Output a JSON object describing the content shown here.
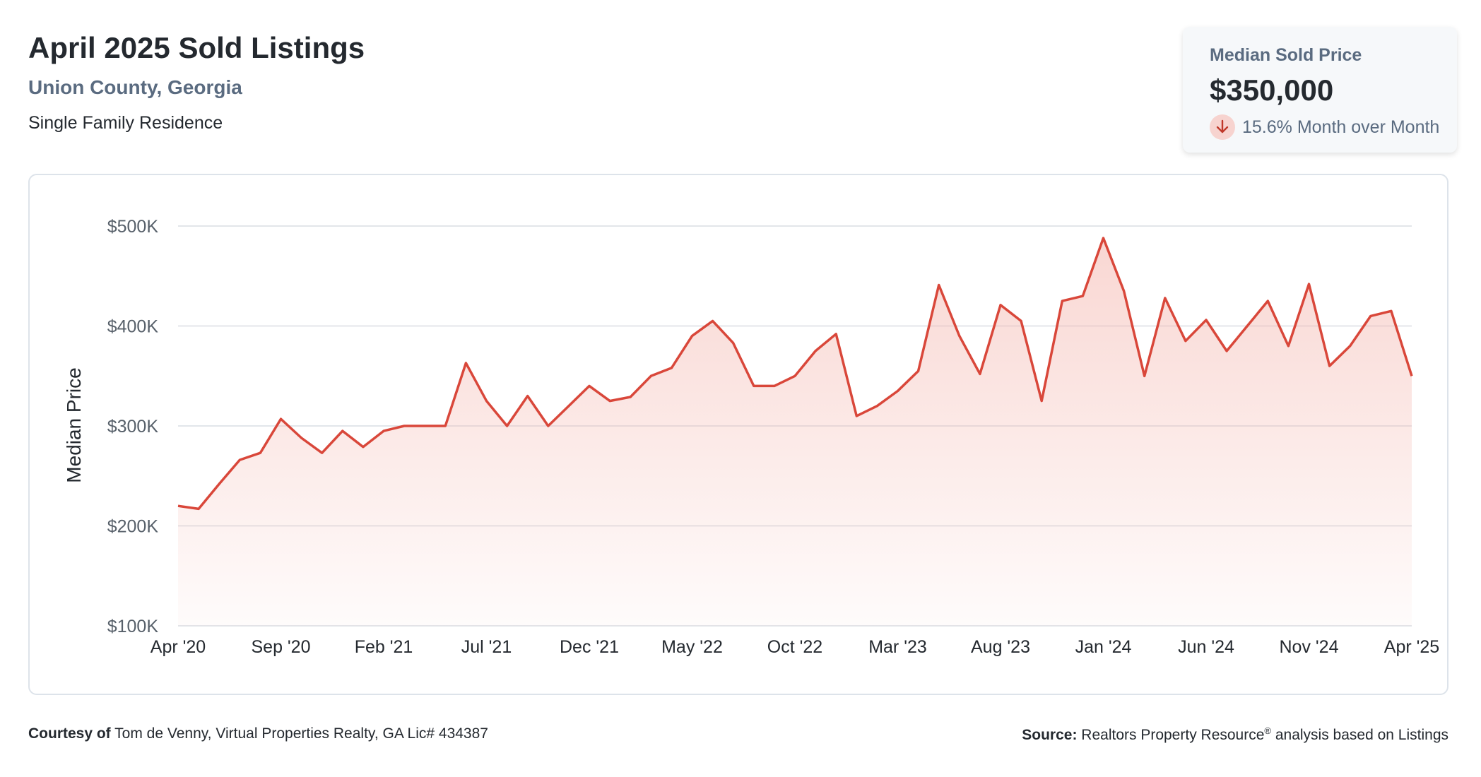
{
  "header": {
    "title": "April 2025 Sold Listings",
    "location": "Union County, Georgia",
    "property_type": "Single Family Residence"
  },
  "stat_card": {
    "label": "Median Sold Price",
    "value": "$350,000",
    "change_text": "15.6% Month over Month",
    "direction_icon": "arrow-down-icon",
    "direction_color": "#c0392b"
  },
  "colors": {
    "line": "#d9473a",
    "fill_top": "#f4b6ae",
    "grid": "#d9dde3"
  },
  "chart_data": {
    "type": "area",
    "ylabel": "Median Price",
    "ylim": [
      100000,
      500000
    ],
    "y_ticks": [
      100000,
      200000,
      300000,
      400000,
      500000
    ],
    "y_tick_labels": [
      "$100K",
      "$200K",
      "$300K",
      "$400K",
      "$500K"
    ],
    "x_tick_labels": [
      "Apr '20",
      "Sep '20",
      "Feb '21",
      "Jul '21",
      "Dec '21",
      "May '22",
      "Oct '22",
      "Mar '23",
      "Aug '23",
      "Jan '24",
      "Jun '24",
      "Nov '24",
      "Apr '25"
    ],
    "x_tick_interval_months": 5,
    "grid": true,
    "legend": "none",
    "x": [
      "2020-04",
      "2020-05",
      "2020-06",
      "2020-07",
      "2020-08",
      "2020-09",
      "2020-10",
      "2020-11",
      "2020-12",
      "2021-01",
      "2021-02",
      "2021-03",
      "2021-04",
      "2021-05",
      "2021-06",
      "2021-07",
      "2021-08",
      "2021-09",
      "2021-10",
      "2021-11",
      "2021-12",
      "2022-01",
      "2022-02",
      "2022-03",
      "2022-04",
      "2022-05",
      "2022-06",
      "2022-07",
      "2022-08",
      "2022-09",
      "2022-10",
      "2022-11",
      "2022-12",
      "2023-01",
      "2023-02",
      "2023-03",
      "2023-04",
      "2023-05",
      "2023-06",
      "2023-07",
      "2023-08",
      "2023-09",
      "2023-10",
      "2023-11",
      "2023-12",
      "2024-01",
      "2024-02",
      "2024-03",
      "2024-04",
      "2024-05",
      "2024-06",
      "2024-07",
      "2024-08",
      "2024-09",
      "2024-10",
      "2024-11",
      "2024-12",
      "2025-01",
      "2025-02",
      "2025-03",
      "2025-04"
    ],
    "values": [
      220000,
      217000,
      242000,
      266000,
      273000,
      307000,
      288000,
      273000,
      295000,
      279000,
      295000,
      300000,
      300000,
      300000,
      363000,
      325000,
      300000,
      330000,
      300000,
      320000,
      340000,
      325000,
      329000,
      350000,
      358000,
      390000,
      405000,
      383000,
      340000,
      340000,
      350000,
      375000,
      392000,
      310000,
      320000,
      335000,
      355000,
      441000,
      390000,
      352000,
      421000,
      405000,
      325000,
      425000,
      430000,
      488000,
      435000,
      350000,
      428000,
      385000,
      406000,
      375000,
      400000,
      425000,
      380000,
      442000,
      360000,
      380000,
      410000,
      415000,
      350000
    ]
  },
  "footer": {
    "courtesy_label": "Courtesy of",
    "courtesy_text": "Tom de Venny, Virtual Properties Realty, GA Lic# 434387",
    "source_label": "Source:",
    "source_text_a": "Realtors Property Resource",
    "source_reg": "®",
    "source_text_b": "analysis based on Listings"
  }
}
